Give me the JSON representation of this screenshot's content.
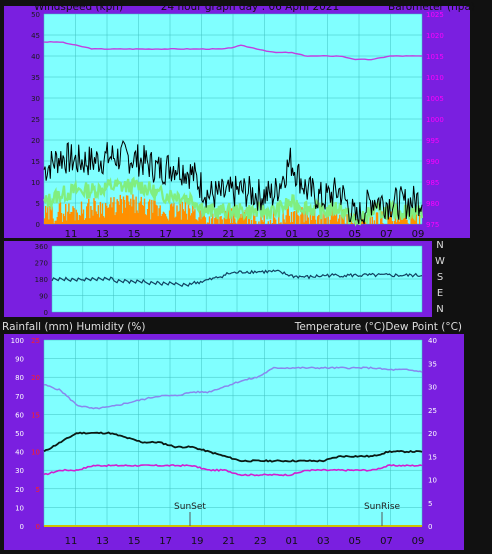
{
  "colors": {
    "frame": "#111111",
    "panel": "#7a1fe0",
    "plot": "#80ffff",
    "grid": "#40c0c0",
    "left_tick": "#1a1a1a",
    "baro_tick": "#ff00ff",
    "rain_tick": "#ff2020",
    "text": "#111111",
    "dir_text": "#dddddd",
    "wind_gust": "#000000",
    "wind_avg": "#80ee80",
    "wind_orange": "#ff9000",
    "barometer": "#c040e0",
    "direction": "#104060",
    "humidity": "#8888ee",
    "temperature": "#0a1a14",
    "dew_point": "#d020d0",
    "rain_line": "#d0c000"
  },
  "header": {
    "windspeed_label": "Windspeed (kph)",
    "title": "24 hour graph day : 06 April 2021",
    "barometer_label": "Barometer (hpa)"
  },
  "lower_header": {
    "rain_humidity_label": "Rainfall (mm)  Humidity (%)",
    "temp_label": "Temperature (°C)Dew Point (°C)"
  },
  "x_ticks": [
    "11",
    "13",
    "15",
    "17",
    "19",
    "21",
    "23",
    "01",
    "03",
    "05",
    "07",
    "09"
  ],
  "wind_axis_labels": [
    "50",
    "45",
    "40",
    "35",
    "30",
    "25",
    "20",
    "15",
    "10",
    "5",
    "0"
  ],
  "baro_axis_labels": [
    "1025",
    "1020",
    "1015",
    "1010",
    "1005",
    "1000",
    "995",
    "990",
    "985",
    "980",
    "975"
  ],
  "dir_axis_labels": [
    "360",
    "270",
    "180",
    "90",
    "0"
  ],
  "dir_letters": [
    "N",
    "W",
    "S",
    "E",
    "N"
  ],
  "humidity_axis_labels": [
    "100",
    "90",
    "80",
    "70",
    "60",
    "50",
    "40",
    "30",
    "20",
    "10",
    "0"
  ],
  "rain_axis_labels": [
    "25",
    "20",
    "15",
    "10",
    "5",
    "0"
  ],
  "temp_axis_labels": [
    "40",
    "35",
    "30",
    "25",
    "20",
    "15",
    "10",
    "5",
    "0"
  ],
  "annotations": {
    "sunset": "SunSet",
    "sunrise": "SunRise"
  },
  "chart_data": [
    {
      "type": "line",
      "x": [
        "10",
        "11",
        "12",
        "13",
        "14",
        "15",
        "16",
        "17",
        "18",
        "19",
        "20",
        "21",
        "22",
        "23",
        "00",
        "01",
        "02",
        "03",
        "04",
        "05",
        "06",
        "07",
        "08",
        "09"
      ],
      "xlabel": "",
      "ylabel": "Windspeed (kph)",
      "ylim": [
        0,
        50
      ],
      "y2label": "Barometer (hpa)",
      "y2lim": [
        970,
        1030
      ],
      "grid": true,
      "series": [
        {
          "values": [
            13,
            16,
            15,
            15,
            16,
            16,
            15,
            13,
            14,
            12,
            7,
            7,
            8,
            7,
            7,
            15,
            8,
            6,
            8,
            1,
            6,
            5,
            5,
            6
          ]
        },
        {
          "values": [
            5,
            7,
            8,
            8,
            9,
            9,
            9,
            7,
            7,
            6,
            3,
            3,
            3,
            3,
            3,
            5,
            4,
            3,
            4,
            0,
            3,
            3,
            3,
            3
          ]
        },
        {
          "values": [
            2,
            3,
            3,
            4,
            4,
            5,
            4,
            3,
            3,
            3,
            1,
            1,
            2,
            1,
            1,
            2,
            2,
            1,
            2,
            0,
            1,
            1,
            1,
            1
          ]
        },
        {
          "axis": "y2",
          "values": [
            1022,
            1022,
            1021,
            1020,
            1020,
            1020,
            1020,
            1020,
            1020,
            1020,
            1020,
            1020,
            1021,
            1020,
            1019,
            1019,
            1018,
            1018,
            1018,
            1017,
            1017,
            1018,
            1018,
            1018
          ]
        }
      ]
    },
    {
      "type": "line",
      "x": [
        "10",
        "11",
        "12",
        "13",
        "14",
        "15",
        "16",
        "17",
        "18",
        "19",
        "20",
        "21",
        "22",
        "23",
        "00",
        "01",
        "02",
        "03",
        "04",
        "05",
        "06",
        "07",
        "08",
        "09"
      ],
      "ylim": [
        0,
        360
      ],
      "grid": true,
      "series": [
        {
          "values": [
            180,
            175,
            180,
            180,
            170,
            165,
            160,
            155,
            150,
            160,
            180,
            210,
            220,
            220,
            220,
            195,
            190,
            200,
            200,
            200,
            200,
            200,
            200,
            200
          ]
        }
      ]
    },
    {
      "type": "line",
      "x": [
        "10",
        "11",
        "12",
        "13",
        "14",
        "15",
        "16",
        "17",
        "18",
        "19",
        "20",
        "21",
        "22",
        "23",
        "00",
        "01",
        "02",
        "03",
        "04",
        "05",
        "06",
        "07",
        "08",
        "09"
      ],
      "ylabel": "Rainfall (mm)  Humidity (%)",
      "ylim": [
        0,
        100
      ],
      "y2label": "Temperature (°C)Dew Point (°C)",
      "y2lim": [
        0,
        40
      ],
      "grid": true,
      "series": [
        {
          "values": [
            76,
            73,
            65,
            63,
            64,
            66,
            68,
            70,
            70,
            72,
            72,
            75,
            78,
            80,
            85,
            85,
            85,
            85,
            85,
            85,
            85,
            84,
            84,
            83
          ]
        },
        {
          "axis": "y2",
          "values": [
            16,
            18,
            20,
            20,
            20,
            19,
            18,
            18,
            17,
            17,
            16,
            15,
            14,
            14,
            14,
            14,
            14,
            14,
            15,
            15,
            15,
            16,
            16,
            16
          ]
        },
        {
          "axis": "y2",
          "values": [
            11,
            12,
            12,
            13,
            13,
            13,
            13,
            13,
            13,
            13,
            12,
            12,
            11,
            11,
            11,
            11,
            12,
            12,
            12,
            12,
            12,
            13,
            13,
            13
          ]
        },
        {
          "values": [
            0,
            0,
            0,
            0,
            0,
            0,
            0,
            0,
            0,
            0,
            0,
            0,
            0,
            0,
            0,
            0,
            0,
            0,
            0,
            0,
            0,
            0,
            0,
            0
          ]
        }
      ]
    }
  ]
}
